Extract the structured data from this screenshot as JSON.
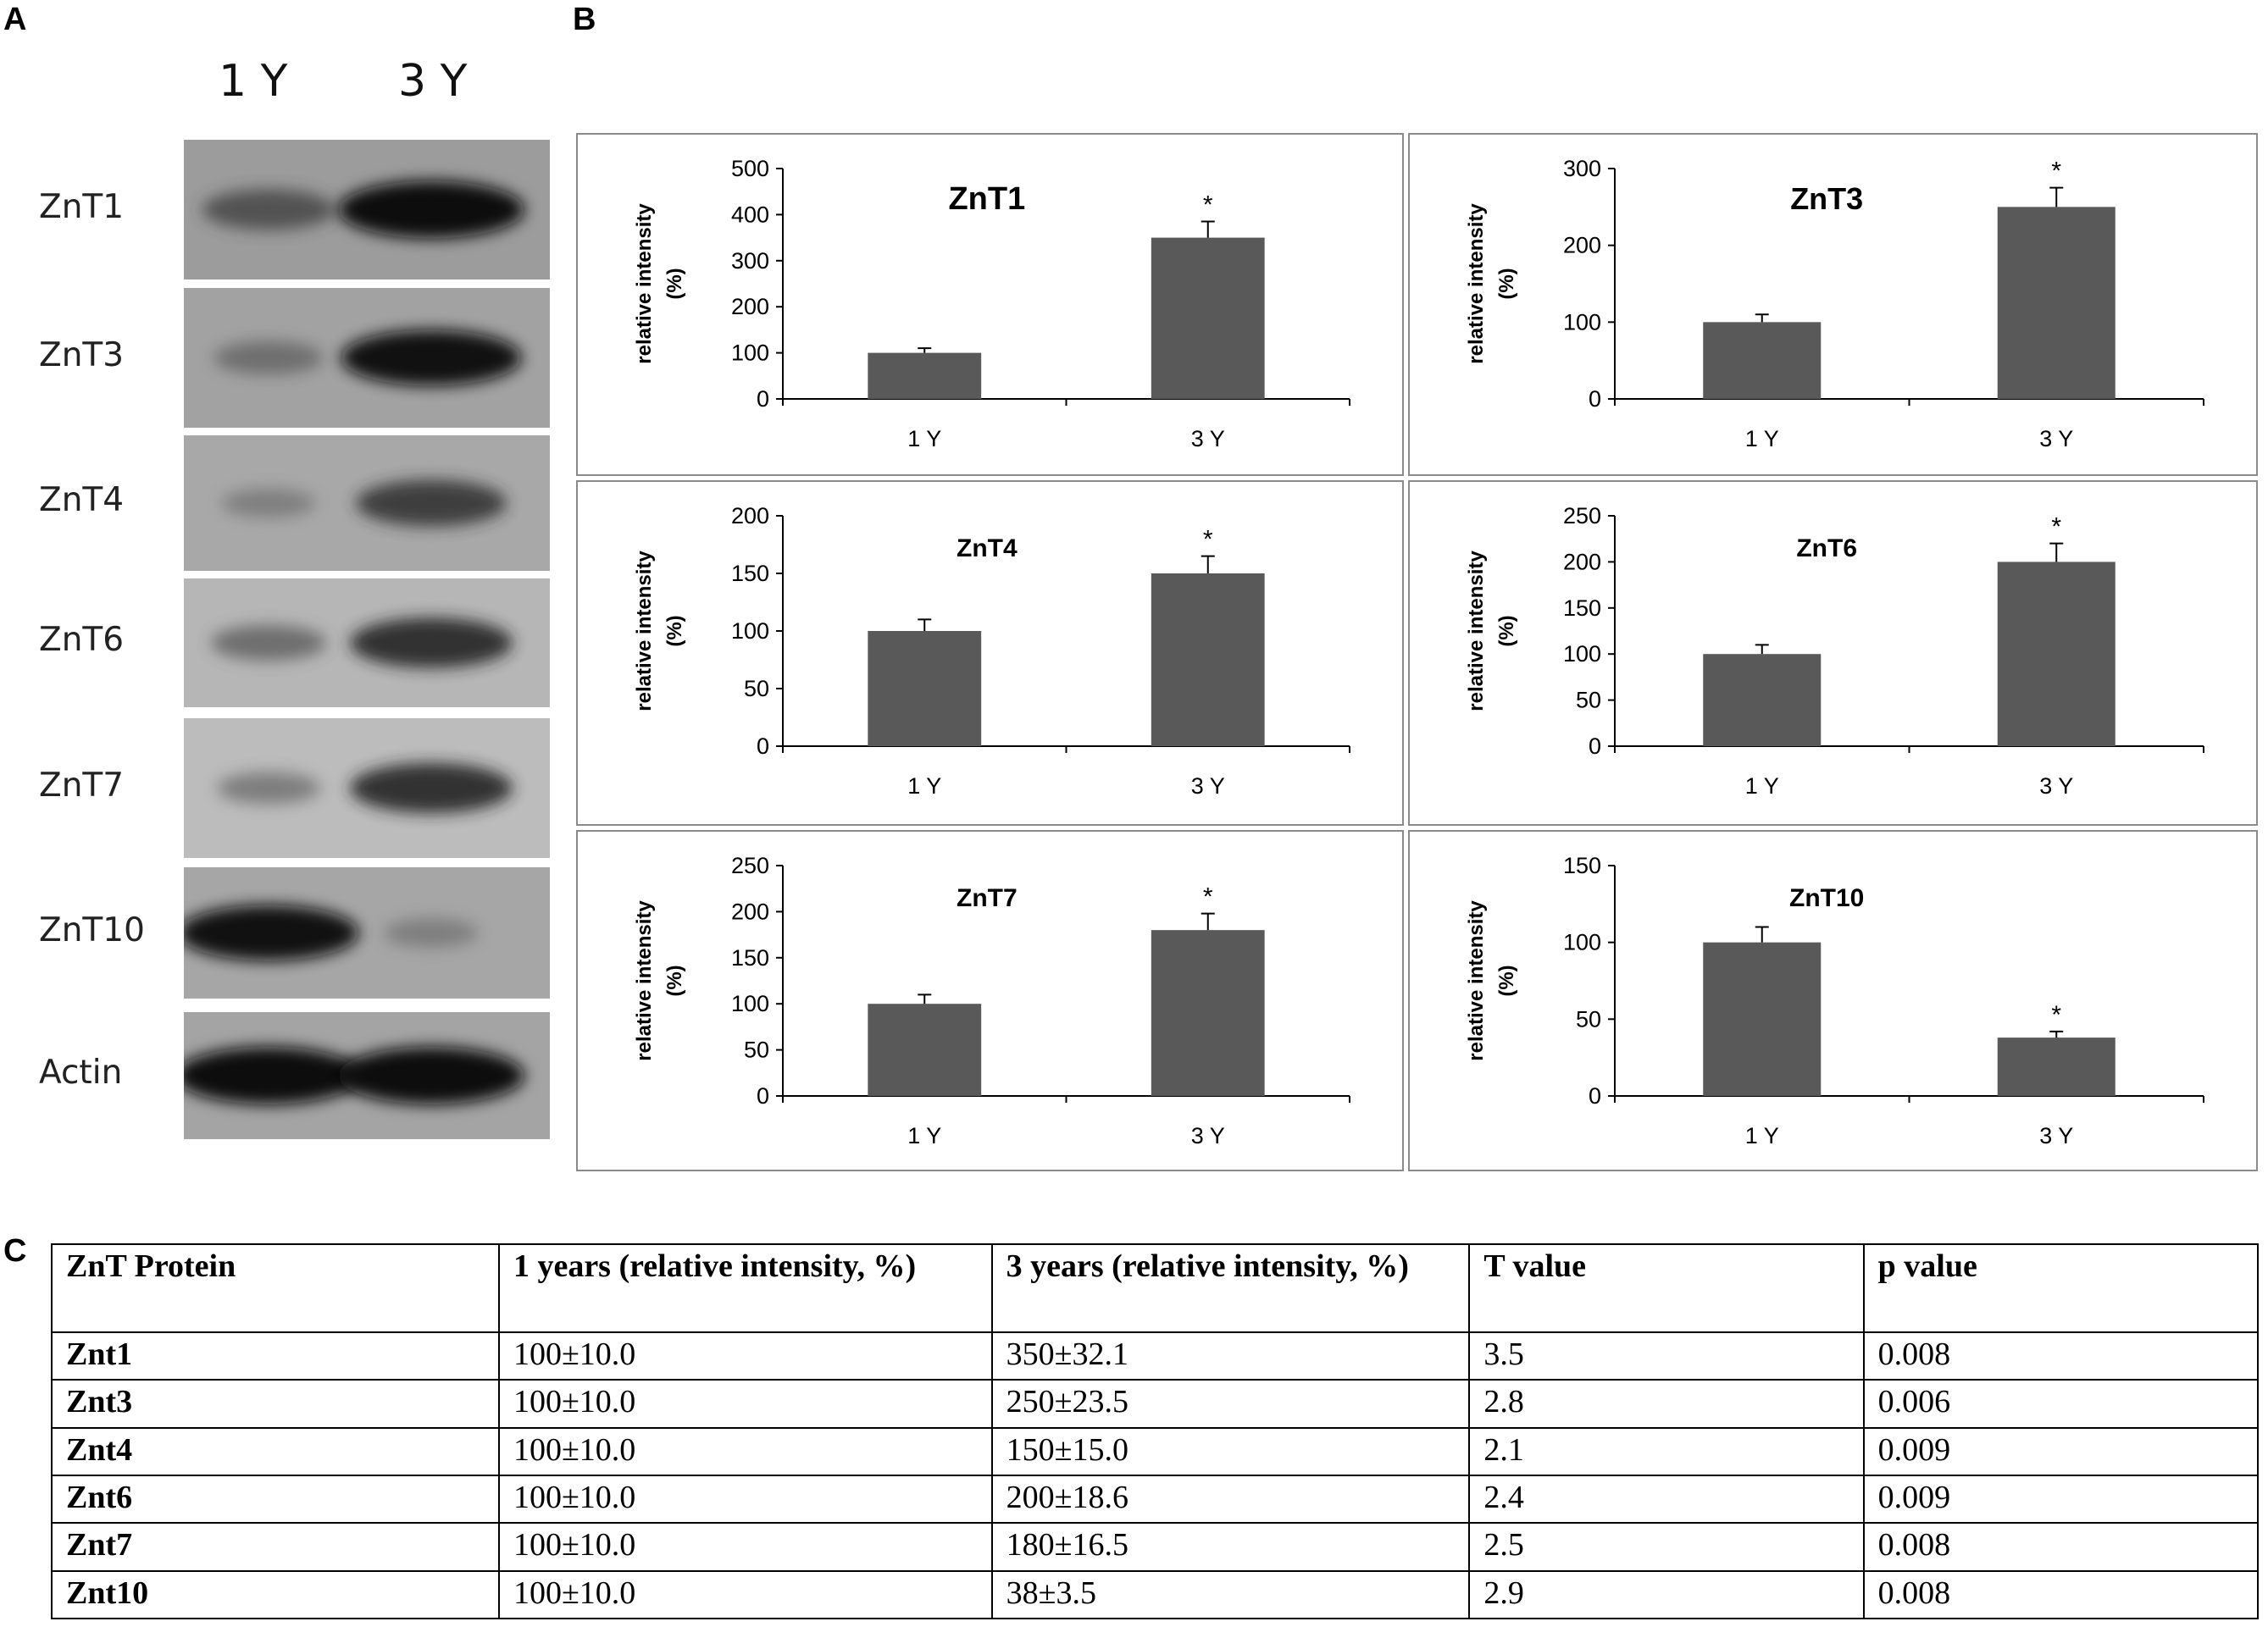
{
  "panels": {
    "a": "A",
    "b": "B",
    "c": "C"
  },
  "blot": {
    "lanes": [
      "1 Y",
      "3 Y"
    ],
    "rows": [
      {
        "label": "ZnT1",
        "bg": "#9c9c9c",
        "band1": 0.55,
        "band2": 1.0
      },
      {
        "label": "ZnT3",
        "bg": "#a2a2a2",
        "band1": 0.35,
        "band2": 0.95
      },
      {
        "label": "ZnT4",
        "bg": "#a8a8a8",
        "band1": 0.22,
        "band2": 0.7
      },
      {
        "label": "ZnT6",
        "bg": "#b6b6b6",
        "band1": 0.4,
        "band2": 0.8
      },
      {
        "label": "ZnT7",
        "bg": "#bcbcbc",
        "band1": 0.3,
        "band2": 0.8
      },
      {
        "label": "ZnT10",
        "bg": "#a6a6a6",
        "band1": 0.95,
        "band2": 0.22
      },
      {
        "label": "Actin",
        "bg": "#a4a4a4",
        "band1": 1.0,
        "band2": 1.0
      }
    ]
  },
  "chart_data": [
    {
      "type": "bar",
      "title": "ZnT1",
      "ylabel": "relative intensity (%)",
      "categories": [
        "1 Y",
        "3 Y"
      ],
      "values": [
        100,
        350
      ],
      "errors": [
        10,
        35
      ],
      "ylim": [
        0,
        500
      ],
      "yticks": [
        0,
        100,
        200,
        300,
        400,
        500
      ],
      "annotation": "*",
      "annotated_index": 1,
      "bar_color": "#595959"
    },
    {
      "type": "bar",
      "title": "ZnT3",
      "ylabel": "relative intensity (%)",
      "categories": [
        "1 Y",
        "3 Y"
      ],
      "values": [
        100,
        250
      ],
      "errors": [
        10,
        25
      ],
      "ylim": [
        0,
        300
      ],
      "yticks": [
        0,
        100,
        200,
        300
      ],
      "annotation": "*",
      "annotated_index": 1,
      "bar_color": "#595959"
    },
    {
      "type": "bar",
      "title": "ZnT4",
      "ylabel": "relative intensity (%)",
      "categories": [
        "1 Y",
        "3 Y"
      ],
      "values": [
        100,
        150
      ],
      "errors": [
        10,
        15
      ],
      "ylim": [
        0,
        200
      ],
      "yticks": [
        0,
        50,
        100,
        150,
        200
      ],
      "annotation": "*",
      "annotated_index": 1,
      "bar_color": "#595959"
    },
    {
      "type": "bar",
      "title": "ZnT6",
      "ylabel": "relative intensity (%)",
      "categories": [
        "1 Y",
        "3 Y"
      ],
      "values": [
        100,
        200
      ],
      "errors": [
        10,
        20
      ],
      "ylim": [
        0,
        250
      ],
      "yticks": [
        0,
        50,
        100,
        150,
        200,
        250
      ],
      "annotation": "*",
      "annotated_index": 1,
      "bar_color": "#595959"
    },
    {
      "type": "bar",
      "title": "ZnT7",
      "ylabel": "relative intensity (%)",
      "categories": [
        "1 Y",
        "3 Y"
      ],
      "values": [
        100,
        180
      ],
      "errors": [
        10,
        18
      ],
      "ylim": [
        0,
        250
      ],
      "yticks": [
        0,
        50,
        100,
        150,
        200,
        250
      ],
      "annotation": "*",
      "annotated_index": 1,
      "bar_color": "#595959"
    },
    {
      "type": "bar",
      "title": "ZnT10",
      "ylabel": "relative intensity (%)",
      "categories": [
        "1 Y",
        "3 Y"
      ],
      "values": [
        100,
        38
      ],
      "errors": [
        10,
        4
      ],
      "ylim": [
        0,
        150
      ],
      "yticks": [
        0,
        50,
        100,
        150
      ],
      "annotation": "*",
      "annotated_index": 1,
      "bar_color": "#595959"
    },
    {
      "type": "table",
      "columns": [
        "ZnT Protein",
        "1 years (relative intensity, %)",
        "3 years (relative intensity, %)",
        "T value",
        "p value"
      ],
      "rows": [
        [
          "Znt1",
          "100±10.0",
          "350±32.1",
          "3.5",
          "0.008"
        ],
        [
          "Znt3",
          "100±10.0",
          "250±23.5",
          "2.8",
          "0.006"
        ],
        [
          "Znt4",
          "100±10.0",
          "150±15.0",
          "2.1",
          "0.009"
        ],
        [
          "Znt6",
          "100±10.0",
          "200±18.6",
          "2.4",
          "0.009"
        ],
        [
          "Znt7",
          "100±10.0",
          "180±16.5",
          "2.5",
          "0.008"
        ],
        [
          "Znt10",
          "100±10.0",
          "38±3.5",
          "2.9",
          "0.008"
        ]
      ]
    }
  ]
}
